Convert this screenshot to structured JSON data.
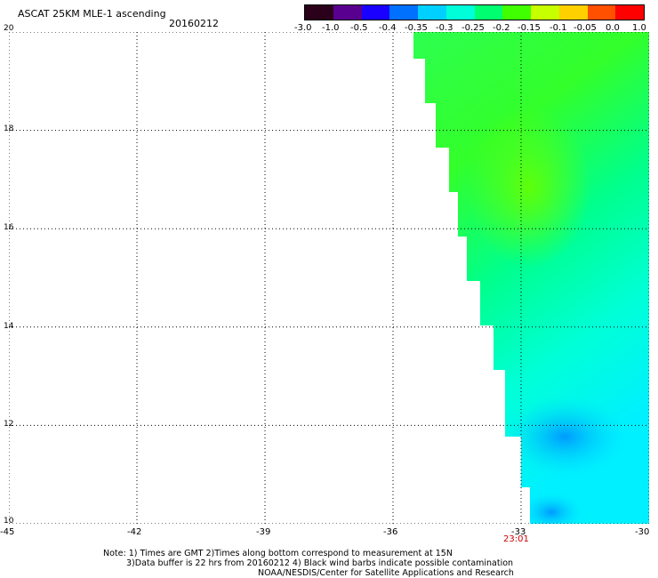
{
  "title": "ASCAT 25KM MLE-1 ascending",
  "date": "20160212",
  "colorbar": {
    "colors": [
      "#2a001a",
      "#5a0090",
      "#1a00ff",
      "#0070ff",
      "#00d0ff",
      "#00ffd8",
      "#00ff70",
      "#40ff00",
      "#c8ff00",
      "#ffd000",
      "#ff5000",
      "#ff0000"
    ],
    "labels": [
      "-3.0",
      "-1.0",
      "-0.5",
      "-0.4",
      "-0.35",
      "-0.3",
      "-0.25",
      "-0.2",
      "-0.15",
      "-0.1",
      "-0.05",
      "0.0",
      "1.0"
    ]
  },
  "map": {
    "lon_ticks": [
      "-45",
      "-42",
      "-39",
      "-36",
      "-33",
      "-30"
    ],
    "lat_ticks": [
      "20",
      "18",
      "16",
      "14",
      "12",
      "10"
    ],
    "lon_range": [
      -45,
      -30
    ],
    "lat_range": [
      10,
      20
    ],
    "time_label": "23:01",
    "time_lon": -33
  },
  "notes": {
    "line1": "Note: 1) Times are GMT 2)Times along bottom correspond to measurement at 15N",
    "line2": "3)Data buffer is 22 hrs from 20160212 4) Black wind barbs indicate possible contamination",
    "line3": "NOAA/NESDIS/Center for Satellite Applications and Research"
  }
}
